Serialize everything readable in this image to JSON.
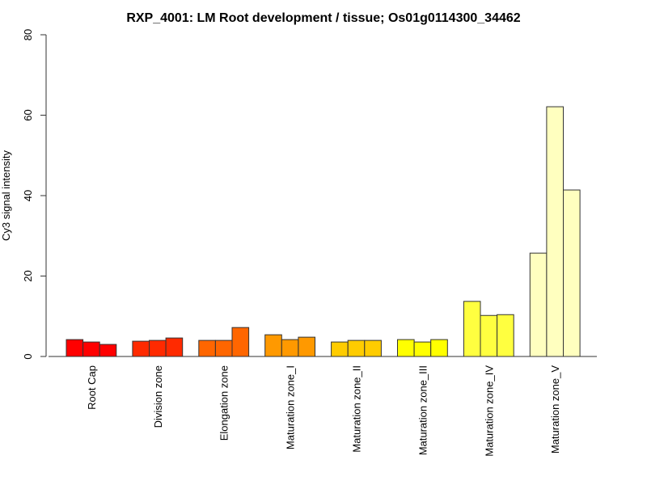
{
  "chart_data": {
    "type": "bar",
    "title": "RXP_4001: LM Root development / tissue; Os01g0114300_34462",
    "xlabel": "",
    "ylabel": "Cy3 signal intensity",
    "ylim": [
      0,
      80
    ],
    "yticks": [
      "0",
      "20",
      "40",
      "60",
      "80"
    ],
    "grid": false,
    "legend": "none",
    "categories": [
      "Root Cap",
      "Division zone",
      "Elongation zone",
      "Maturation zone_I",
      "Maturation zone_II",
      "Maturation zone_III",
      "Maturation zone_IV",
      "Maturation zone_V"
    ],
    "colors": [
      "#ff0000",
      "#ff2a00",
      "#ff6600",
      "#ff9900",
      "#ffcc00",
      "#ffff00",
      "#ffff40",
      "#ffffbf"
    ],
    "replicates": [
      [
        4.2,
        3.6,
        3.0
      ],
      [
        3.8,
        4.0,
        4.6
      ],
      [
        4.0,
        4.0,
        7.2
      ],
      [
        5.4,
        4.2,
        4.8
      ],
      [
        3.6,
        4.0,
        4.0
      ],
      [
        4.2,
        3.6,
        4.2
      ],
      [
        13.7,
        10.2,
        10.4
      ],
      [
        25.7,
        62.1,
        41.4
      ]
    ]
  }
}
